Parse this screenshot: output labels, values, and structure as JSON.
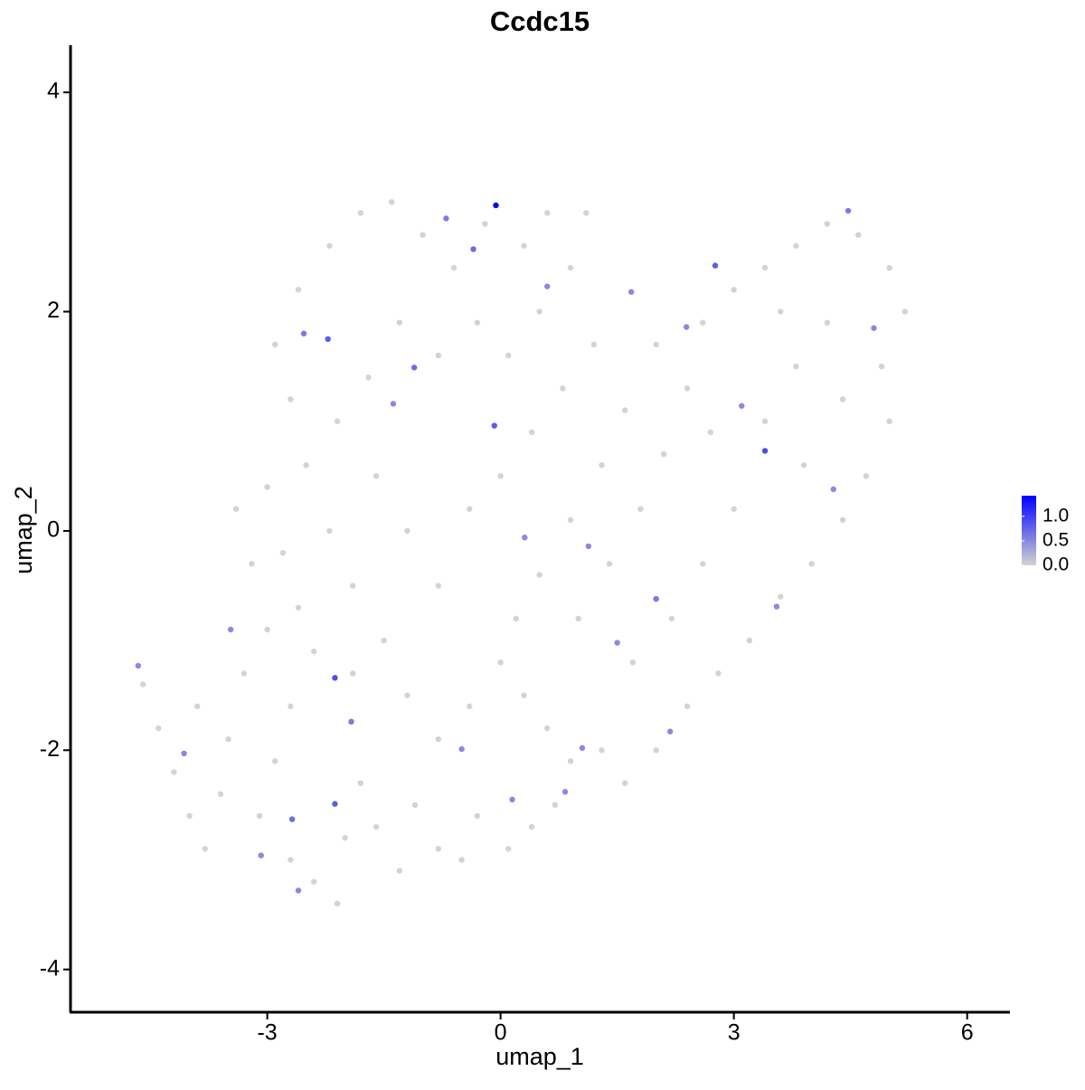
{
  "chart_data": {
    "type": "scatter",
    "title": "Ccdc15",
    "x_label": "umap_1",
    "y_label": "umap_2",
    "xlim": [
      -5.53,
      6.55
    ],
    "ylim": [
      -4.39,
      4.43
    ],
    "xticks": [
      -3,
      0,
      3,
      6
    ],
    "yticks": [
      -4,
      -2,
      0,
      2,
      4
    ],
    "color_low": "#d3d3d3",
    "color_high": "#0000ff",
    "colorlim": [
      0,
      1.42
    ],
    "colorticks": [
      0.0,
      0.5,
      1.0
    ],
    "colorticks_labels": [
      "0.0",
      "0.5",
      "1.0"
    ],
    "x": [
      -4.2,
      -4.0,
      -3.8,
      -3.6,
      -3.5,
      -3.9,
      -3.3,
      -3.0,
      -3.2,
      -3.4,
      -3.0,
      -2.8,
      -2.6,
      -2.4,
      -2.7,
      -2.9,
      -3.1,
      -2.7,
      -2.4,
      -2.1,
      -2.0,
      -1.8,
      -1.6,
      -1.3,
      -1.1,
      -0.8,
      -0.5,
      -0.3,
      0.1,
      0.4,
      0.7,
      0.9,
      0.6,
      0.3,
      0.0,
      -0.4,
      -0.8,
      -1.2,
      -1.5,
      -1.9,
      -2.2,
      -2.5,
      -2.7,
      -2.9,
      -2.6,
      -2.2,
      -1.8,
      -1.4,
      -1.0,
      -0.6,
      -0.2,
      0.3,
      0.6,
      0.9,
      0.5,
      0.1,
      -0.3,
      -0.8,
      -1.3,
      -1.7,
      -2.1,
      -1.6,
      -1.2,
      -0.8,
      -0.4,
      0.0,
      0.4,
      0.8,
      1.2,
      1.6,
      1.3,
      0.9,
      0.5,
      1.0,
      1.4,
      1.8,
      2.1,
      2.4,
      2.0,
      2.6,
      3.0,
      3.4,
      3.8,
      4.2,
      4.6,
      5.0,
      5.2,
      4.9,
      5.0,
      4.7,
      4.4,
      4.0,
      3.6,
      3.2,
      2.8,
      2.4,
      2.0,
      1.6,
      1.3,
      1.7,
      2.2,
      2.6,
      3.0,
      3.4,
      3.8,
      4.2,
      3.6,
      4.4,
      3.9,
      2.7,
      -4.6,
      -4.4,
      1.1,
      -1.9,
      0.2,
      -4.66,
      -2.13,
      -2.13,
      -2.68,
      -2.6,
      -2.53,
      -2.22,
      -1.11,
      -0.35,
      -0.7,
      -0.08,
      2.76,
      3.4,
      4.47,
      1.05,
      0.15,
      -1.92,
      -4.07,
      2.0,
      3.55,
      2.18,
      1.5,
      0.6,
      1.68,
      3.1,
      -3.47,
      -3.08,
      -1.38,
      1.13,
      0.31,
      -0.5,
      0.83,
      4.28,
      4.8,
      2.39,
      -0.06
    ],
    "y": [
      -2.2,
      -2.6,
      -2.9,
      -2.4,
      -1.9,
      -1.6,
      -1.3,
      -0.9,
      -0.3,
      0.2,
      0.4,
      -0.2,
      -0.7,
      -1.1,
      -1.6,
      -2.1,
      -2.6,
      -3.0,
      -3.2,
      -3.4,
      -2.8,
      -2.3,
      -2.7,
      -3.1,
      -2.5,
      -2.9,
      -3.0,
      -2.6,
      -2.9,
      -2.7,
      -2.5,
      -2.1,
      -1.8,
      -1.5,
      -1.2,
      -1.6,
      -1.9,
      -1.5,
      -1.0,
      -0.5,
      0.0,
      0.6,
      1.2,
      1.7,
      2.2,
      2.6,
      2.9,
      3.0,
      2.7,
      2.4,
      2.8,
      2.6,
      2.9,
      2.4,
      2.0,
      1.6,
      1.9,
      1.6,
      1.9,
      1.4,
      1.0,
      0.5,
      0.0,
      -0.5,
      0.2,
      0.5,
      0.9,
      1.3,
      1.7,
      1.1,
      0.6,
      0.1,
      -0.4,
      -0.8,
      -0.3,
      0.2,
      0.7,
      1.3,
      1.7,
      1.9,
      2.2,
      2.4,
      2.6,
      2.8,
      2.7,
      2.4,
      2.0,
      1.5,
      1.0,
      0.5,
      0.1,
      -0.3,
      -0.6,
      -1.0,
      -1.3,
      -1.6,
      -2.0,
      -2.3,
      -2.0,
      -1.2,
      -0.8,
      -0.3,
      0.2,
      1.0,
      1.5,
      1.9,
      2.0,
      1.2,
      0.6,
      0.9,
      -1.4,
      -1.8,
      2.9,
      -1.3,
      -0.8,
      -1.23,
      -1.34,
      -2.49,
      -2.63,
      -3.28,
      1.8,
      1.75,
      1.49,
      2.57,
      2.85,
      0.96,
      2.42,
      0.73,
      2.92,
      -1.98,
      -2.45,
      -1.74,
      -2.03,
      -0.62,
      -0.69,
      -1.83,
      -1.02,
      2.23,
      2.18,
      1.14,
      -0.9,
      -2.96,
      1.16,
      -0.14,
      -0.06,
      -1.99,
      -2.38,
      0.38,
      1.85,
      1.86,
      2.97
    ],
    "values": [
      0,
      0,
      0,
      0,
      0,
      0,
      0,
      0,
      0,
      0,
      0,
      0,
      0,
      0,
      0,
      0,
      0,
      0,
      0,
      0,
      0,
      0,
      0,
      0,
      0,
      0,
      0,
      0,
      0,
      0,
      0,
      0,
      0,
      0,
      0,
      0,
      0,
      0,
      0,
      0,
      0,
      0,
      0,
      0,
      0,
      0,
      0,
      0,
      0,
      0,
      0,
      0,
      0,
      0,
      0,
      0,
      0,
      0,
      0,
      0,
      0,
      0,
      0,
      0,
      0,
      0,
      0,
      0,
      0,
      0,
      0,
      0,
      0,
      0,
      0,
      0,
      0,
      0,
      0,
      0,
      0,
      0,
      0,
      0,
      0,
      0,
      0,
      0,
      0,
      0,
      0,
      0,
      0,
      0,
      0,
      0,
      0,
      0,
      0,
      0,
      0,
      0,
      0,
      0,
      0,
      0,
      0,
      0,
      0,
      0,
      0,
      0,
      0,
      0,
      0,
      0.5,
      0.9,
      0.8,
      0.7,
      0.5,
      0.6,
      0.8,
      0.7,
      0.7,
      0.6,
      0.8,
      0.8,
      0.9,
      0.6,
      0.5,
      0.5,
      0.6,
      0.5,
      0.6,
      0.5,
      0.5,
      0.5,
      0.5,
      0.5,
      0.5,
      0.5,
      0.5,
      0.5,
      0.5,
      0.5,
      0.5,
      0.5,
      0.5,
      0.5,
      0.5,
      1.4
    ]
  }
}
